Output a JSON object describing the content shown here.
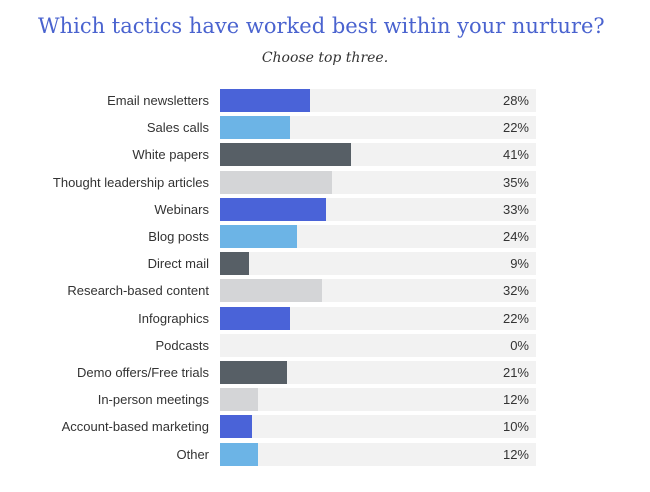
{
  "chart_data": {
    "type": "bar",
    "orientation": "horizontal",
    "title": "Which tactics have worked best within your nurture?",
    "subtitle": "Choose top three.",
    "xlim": [
      0,
      100
    ],
    "categories": [
      "Email newsletters",
      "Sales calls",
      "White papers",
      "Thought leadership articles",
      "Webinars",
      "Blog posts",
      "Direct mail",
      "Research-based content",
      "Infographics",
      "Podcasts",
      "Demo offers/Free trials",
      "In-person meetings",
      "Account-based marketing",
      "Other"
    ],
    "values": [
      28,
      22,
      41,
      35,
      33,
      24,
      9,
      32,
      22,
      0,
      21,
      12,
      10,
      12
    ],
    "value_labels": [
      "28%",
      "22%",
      "41%",
      "35%",
      "33%",
      "24%",
      "9%",
      "32%",
      "22%",
      "0%",
      "21%",
      "12%",
      "10%",
      "12%"
    ],
    "bar_colors": [
      "#4a63d8",
      "#6cb4e6",
      "#575f66",
      "#d4d5d7",
      "#4a63d8",
      "#6cb4e6",
      "#575f66",
      "#d4d5d7",
      "#4a63d8",
      "#6cb4e6",
      "#575f66",
      "#d4d5d7",
      "#4a63d8",
      "#6cb4e6"
    ],
    "track_color": "#f2f2f2"
  }
}
